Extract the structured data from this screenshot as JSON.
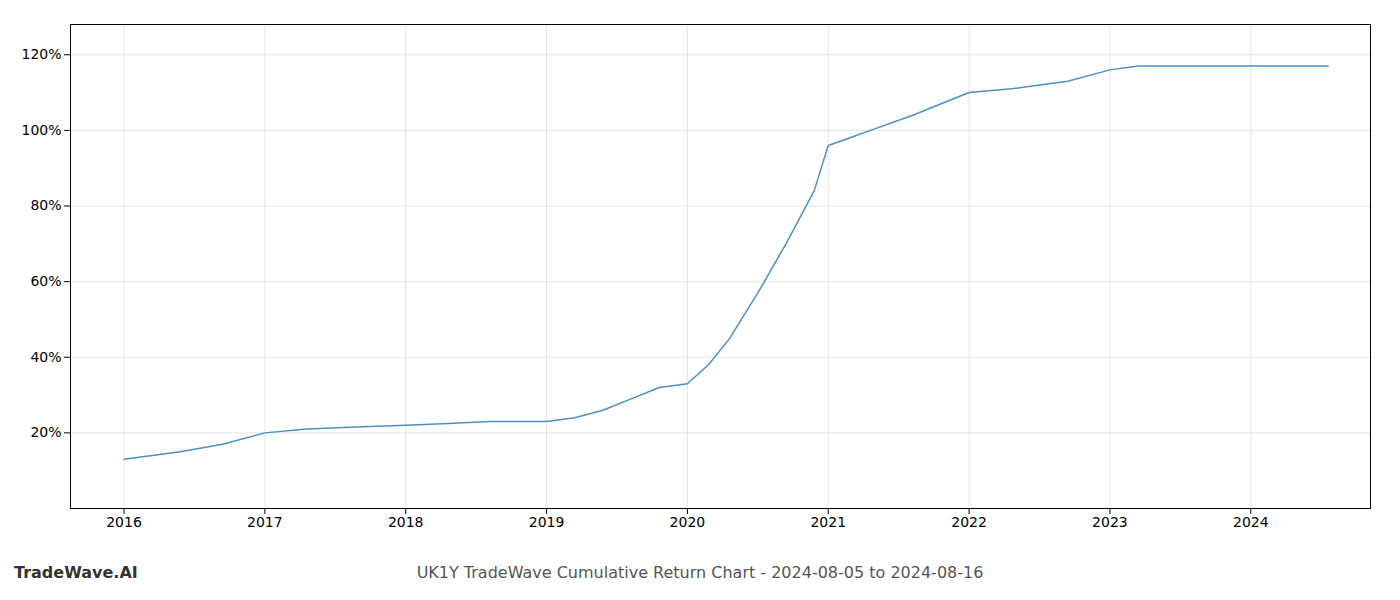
{
  "chart_data": {
    "type": "line",
    "title": "UK1Y TradeWave Cumulative Return Chart - 2024-08-05 to 2024-08-16",
    "annotations": [
      "TradeWave.AI"
    ],
    "x": [
      2016.0,
      2016.4,
      2016.7,
      2017.0,
      2017.3,
      2017.6,
      2018.0,
      2018.3,
      2018.6,
      2019.0,
      2019.2,
      2019.4,
      2019.6,
      2019.8,
      2020.0,
      2020.15,
      2020.3,
      2020.5,
      2020.7,
      2020.9,
      2021.0,
      2021.15,
      2021.3,
      2021.6,
      2022.0,
      2022.3,
      2022.5,
      2022.7,
      2023.0,
      2023.2,
      2023.5,
      2023.8,
      2024.0,
      2024.55
    ],
    "values": [
      13,
      15,
      17,
      20,
      21,
      21.5,
      22,
      22.5,
      23,
      23,
      24,
      26,
      29,
      32,
      33,
      38,
      45,
      57,
      70,
      84,
      96,
      98,
      100,
      104,
      110,
      111,
      112,
      113,
      116,
      117,
      117,
      117,
      117,
      117
    ],
    "color": "#4a90c4",
    "xlim": [
      2015.62,
      2024.85
    ],
    "xticks": [
      2016,
      2017,
      2018,
      2019,
      2020,
      2021,
      2022,
      2023,
      2024
    ],
    "ylim": [
      0,
      128
    ],
    "yticks": [
      {
        "value": 20,
        "label": "20%"
      },
      {
        "value": 40,
        "label": "40%"
      },
      {
        "value": 60,
        "label": "60%"
      },
      {
        "value": 80,
        "label": "80%"
      },
      {
        "value": 100,
        "label": "100%"
      },
      {
        "value": 120,
        "label": "120%"
      }
    ],
    "grid": true
  }
}
